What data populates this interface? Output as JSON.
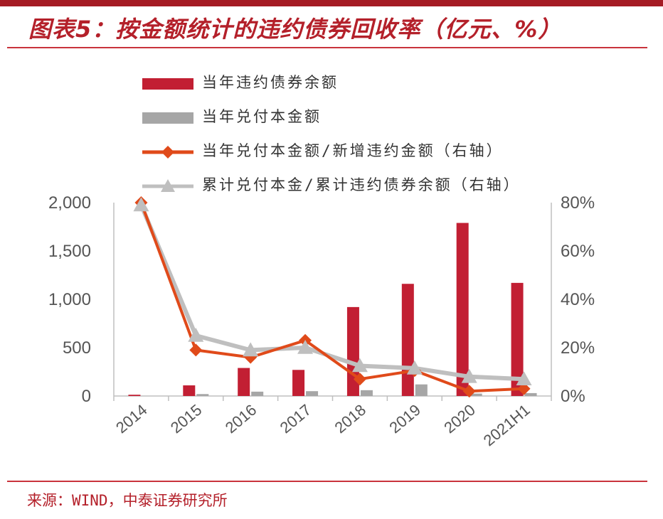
{
  "title": "图表5：按金额统计的违约债券回收率（亿元、%）",
  "source": "来源：WIND，中泰证券研究所",
  "colors": {
    "accent": "#b4202a",
    "bar_default": "#c21f33",
    "bar_paid": "#a6a6a6",
    "line_annual": "#e04a1a",
    "line_cumulative": "#bfbfbf"
  },
  "legend": [
    {
      "label": "当年违约债券余额",
      "marker": "bar-red"
    },
    {
      "label": "当年兑付本金额",
      "marker": "bar-gray"
    },
    {
      "label": "当年兑付本金额/新增违约金额（右轴）",
      "marker": "line-diamond"
    },
    {
      "label": "累计兑付本金/累计违约债券余额（右轴）",
      "marker": "line-triangle"
    }
  ],
  "chart_data": {
    "type": "bar",
    "categories": [
      "2014",
      "2015",
      "2016",
      "2017",
      "2018",
      "2019",
      "2020",
      "2021H1"
    ],
    "series": [
      {
        "name": "当年违约债券余额",
        "type": "bar",
        "axis": "left",
        "values": [
          13,
          110,
          290,
          270,
          920,
          1160,
          1790,
          1170
        ]
      },
      {
        "name": "当年兑付本金额",
        "type": "bar",
        "axis": "left",
        "values": [
          0,
          20,
          45,
          50,
          60,
          120,
          25,
          30
        ]
      },
      {
        "name": "当年兑付本金额/新增违约金额（右轴）",
        "type": "line",
        "axis": "right",
        "values": [
          80,
          19,
          16,
          23,
          7,
          10.5,
          2,
          3
        ]
      },
      {
        "name": "累计兑付本金/累计违约债券余额（右轴）",
        "type": "line",
        "axis": "right",
        "values": [
          79,
          25,
          19,
          20,
          12.5,
          11.5,
          8,
          7
        ]
      }
    ],
    "y_left": {
      "min": 0,
      "max": 2000,
      "ticks": [
        0,
        500,
        1000,
        1500,
        2000
      ],
      "tick_labels": [
        "0",
        "500",
        "1,000",
        "1,500",
        "2,000"
      ]
    },
    "y_right": {
      "min": 0,
      "max": 80,
      "ticks": [
        0,
        20,
        40,
        60,
        80
      ],
      "tick_labels": [
        "0%",
        "20%",
        "40%",
        "60%",
        "80%"
      ]
    },
    "grid": false,
    "legend_position": "top-left"
  }
}
